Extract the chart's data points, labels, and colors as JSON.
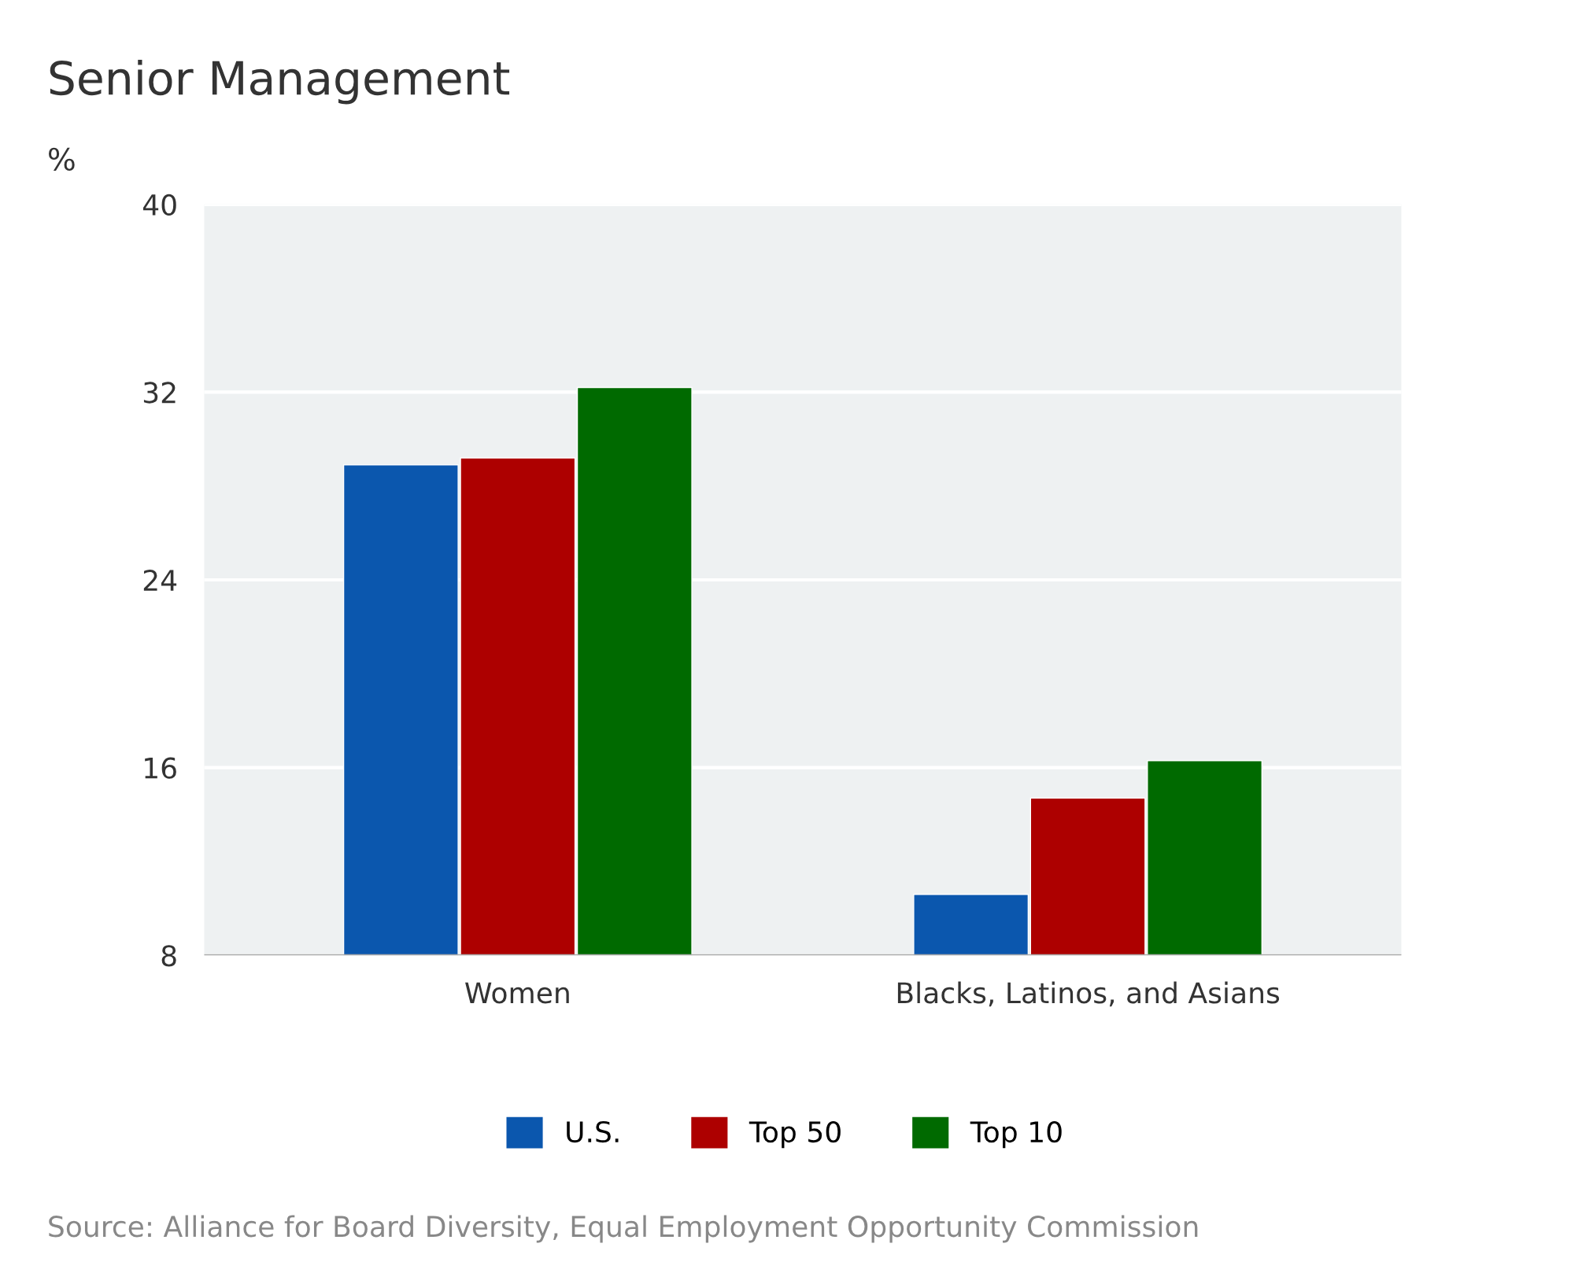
{
  "chart_data": {
    "type": "bar",
    "title": "Senior Management",
    "ylabel": "%",
    "categories": [
      "Women",
      "Blacks, Latinos, and Asians"
    ],
    "series": [
      {
        "name": "U.S.",
        "color": "#0b57ae",
        "values": [
          28.9,
          10.6
        ]
      },
      {
        "name": "Top 50",
        "color": "#ad0000",
        "values": [
          29.2,
          14.7
        ]
      },
      {
        "name": "Top 10",
        "color": "#006a00",
        "values": [
          32.2,
          16.3
        ]
      }
    ],
    "ylim": [
      8,
      40
    ],
    "yticks": [
      8,
      16,
      24,
      32,
      40
    ],
    "grid": "y",
    "legend": "bottom",
    "annotations": [
      "Source: Alliance for Board Diversity, Equal Employment Opportunity Commission"
    ]
  }
}
